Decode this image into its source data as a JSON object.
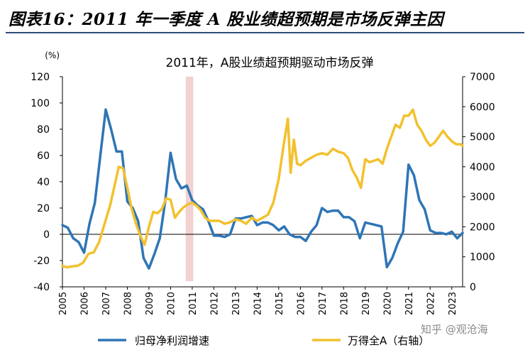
{
  "header": {
    "title": "图表16：2011 年一季度 A 股业绩超预期是市场反弹主因"
  },
  "watermark": "知乎 @观沧海",
  "chart_data": {
    "type": "line",
    "title": "2011年，A股业绩超预期驱动市场反弹",
    "y_left_unit": "(%)",
    "y_left_lim": [
      -40,
      120
    ],
    "y_left_ticks": [
      -40,
      -20,
      0,
      20,
      40,
      60,
      80,
      100,
      120
    ],
    "y_right_lim": [
      0,
      7000
    ],
    "y_right_ticks": [
      0,
      1000,
      2000,
      3000,
      4000,
      5000,
      6000,
      7000
    ],
    "x_lim": [
      2005,
      2023.5
    ],
    "x_ticks": [
      2005,
      2006,
      2007,
      2008,
      2009,
      2010,
      2011,
      2012,
      2013,
      2014,
      2015,
      2016,
      2017,
      2018,
      2019,
      2020,
      2021,
      2022,
      2023
    ],
    "highlight_band": [
      2010.7,
      2011.05
    ],
    "colors": {
      "series1": "#2e75b6",
      "series2": "#f2c12e",
      "band": "#f2d1d1",
      "axis": "#000000"
    },
    "legend_position": "bottom",
    "series": [
      {
        "name": "归母净利润增速",
        "axis": "left",
        "color": "#2e75b6",
        "x": [
          2005.0,
          2005.25,
          2005.5,
          2005.75,
          2006.0,
          2006.25,
          2006.5,
          2006.75,
          2007.0,
          2007.25,
          2007.5,
          2007.75,
          2008.0,
          2008.25,
          2008.5,
          2008.75,
          2009.0,
          2009.25,
          2009.5,
          2009.75,
          2010.0,
          2010.25,
          2010.5,
          2010.75,
          2011.0,
          2011.25,
          2011.5,
          2011.75,
          2012.0,
          2012.25,
          2012.5,
          2012.75,
          2013.0,
          2013.25,
          2013.5,
          2013.75,
          2014.0,
          2014.25,
          2014.5,
          2014.75,
          2015.0,
          2015.25,
          2015.5,
          2015.75,
          2016.0,
          2016.25,
          2016.5,
          2016.75,
          2017.0,
          2017.25,
          2017.5,
          2017.75,
          2018.0,
          2018.25,
          2018.5,
          2018.75,
          2019.0,
          2019.25,
          2019.5,
          2019.75,
          2020.0,
          2020.25,
          2020.5,
          2020.75,
          2021.0,
          2021.25,
          2021.5,
          2021.75,
          2022.0,
          2022.25,
          2022.5,
          2022.75,
          2023.0,
          2023.25,
          2023.5
        ],
        "values": [
          7,
          5,
          -3,
          -6,
          -14,
          8,
          24,
          60,
          95,
          80,
          63,
          63,
          25,
          20,
          10,
          -18,
          -26,
          -15,
          -3,
          25,
          62,
          42,
          35,
          37,
          26,
          22,
          19,
          10,
          -1,
          -1,
          -2,
          0,
          12,
          12,
          13,
          14,
          7,
          9,
          9,
          7,
          3,
          6,
          0,
          -2,
          -2,
          -5,
          2,
          7,
          20,
          17,
          18,
          18,
          13,
          13,
          10,
          -3,
          9,
          8,
          7,
          6,
          -25,
          -18,
          -7,
          2,
          53,
          45,
          26,
          19,
          3,
          1,
          1,
          0,
          2,
          -3,
          1
        ]
      },
      {
        "name": "万得全A（右轴）",
        "axis": "right",
        "color": "#f2c12e",
        "x": [
          2005.0,
          2005.2,
          2005.45,
          2005.7,
          2005.95,
          2006.2,
          2006.45,
          2006.7,
          2006.95,
          2007.2,
          2007.45,
          2007.6,
          2007.8,
          2008.0,
          2008.2,
          2008.4,
          2008.6,
          2008.8,
          2009.0,
          2009.2,
          2009.4,
          2009.6,
          2009.8,
          2010.0,
          2010.2,
          2010.4,
          2010.6,
          2010.8,
          2011.0,
          2011.2,
          2011.4,
          2011.6,
          2011.8,
          2012.0,
          2012.25,
          2012.5,
          2012.75,
          2013.0,
          2013.25,
          2013.5,
          2013.75,
          2014.0,
          2014.25,
          2014.5,
          2014.75,
          2015.0,
          2015.2,
          2015.42,
          2015.55,
          2015.7,
          2015.85,
          2016.0,
          2016.25,
          2016.5,
          2016.75,
          2017.0,
          2017.25,
          2017.5,
          2017.75,
          2018.0,
          2018.2,
          2018.4,
          2018.6,
          2018.8,
          2019.0,
          2019.2,
          2019.4,
          2019.6,
          2019.8,
          2020.0,
          2020.2,
          2020.4,
          2020.6,
          2020.8,
          2021.0,
          2021.2,
          2021.4,
          2021.6,
          2021.8,
          2022.0,
          2022.2,
          2022.4,
          2022.6,
          2022.8,
          2023.0,
          2023.2,
          2023.4,
          2023.5
        ],
        "values": [
          700,
          650,
          680,
          700,
          800,
          1100,
          1150,
          1500,
          2100,
          2700,
          3500,
          4000,
          3950,
          3300,
          2600,
          2100,
          1700,
          1400,
          2000,
          2500,
          2450,
          2600,
          2950,
          2900,
          2300,
          2500,
          2650,
          2750,
          2800,
          2700,
          2550,
          2300,
          2200,
          2200,
          2200,
          2100,
          2150,
          2250,
          2200,
          2100,
          2300,
          2200,
          2300,
          2400,
          2800,
          3600,
          4600,
          5600,
          3800,
          4900,
          4100,
          4050,
          4200,
          4300,
          4400,
          4450,
          4400,
          4600,
          4500,
          4450,
          4300,
          3900,
          3650,
          3300,
          4250,
          4150,
          4200,
          4250,
          4100,
          4600,
          5000,
          5400,
          5300,
          5700,
          5700,
          5900,
          5400,
          5200,
          4900,
          4700,
          4800,
          5000,
          5200,
          5000,
          4850,
          4750,
          4750,
          4700
        ]
      }
    ]
  }
}
